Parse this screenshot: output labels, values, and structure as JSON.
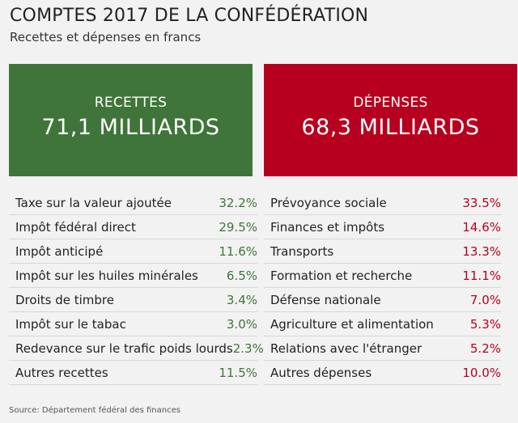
{
  "title": "COMPTES 2017 DE LA CONFÉDÉRATION",
  "subtitle": "Recettes et dépenses en francs",
  "recettes": {
    "label": "RECETTES",
    "value": "71,1 MILLIARDS"
  },
  "depenses": {
    "label": "DÉPENSES",
    "value": "68,3 MILLIARDS"
  },
  "colors": {
    "recettes": "#3f753a",
    "depenses": "#b7001f",
    "background": "#f2f2f2"
  },
  "source": "Source: Département fédéral des finances",
  "chart_data": {
    "type": "table",
    "title": "COMPTES 2017 DE LA CONFÉDÉRATION",
    "subtitle": "Recettes et dépenses en francs",
    "tables": [
      {
        "name": "RECETTES",
        "total": "71,1 MILLIARDS",
        "rows": [
          {
            "label": "Taxe sur la valeur ajoutée",
            "value": "32.2%"
          },
          {
            "label": "Impôt fédéral direct",
            "value": "29.5%"
          },
          {
            "label": "Impôt anticipé",
            "value": "11.6%"
          },
          {
            "label": "Impôt sur les huiles minérales",
            "value": "6.5%"
          },
          {
            "label": "Droits de timbre",
            "value": "3.4%"
          },
          {
            "label": "Impôt sur le tabac",
            "value": "3.0%"
          },
          {
            "label": "Redevance sur le trafic poids lourds",
            "value": "2.3%"
          },
          {
            "label": "Autres recettes",
            "value": "11.5%"
          }
        ]
      },
      {
        "name": "DÉPENSES",
        "total": "68,3 MILLIARDS",
        "rows": [
          {
            "label": "Prévoyance sociale",
            "value": "33.5%"
          },
          {
            "label": "Finances et impôts",
            "value": "14.6%"
          },
          {
            "label": "Transports",
            "value": "13.3%"
          },
          {
            "label": "Formation et recherche",
            "value": "11.1%"
          },
          {
            "label": "Défense nationale",
            "value": "7.0%"
          },
          {
            "label": "Agriculture et alimentation",
            "value": "5.3%"
          },
          {
            "label": "Relations avec l'étranger",
            "value": "5.2%"
          },
          {
            "label": "Autres dépenses",
            "value": "10.0%"
          }
        ]
      }
    ]
  }
}
